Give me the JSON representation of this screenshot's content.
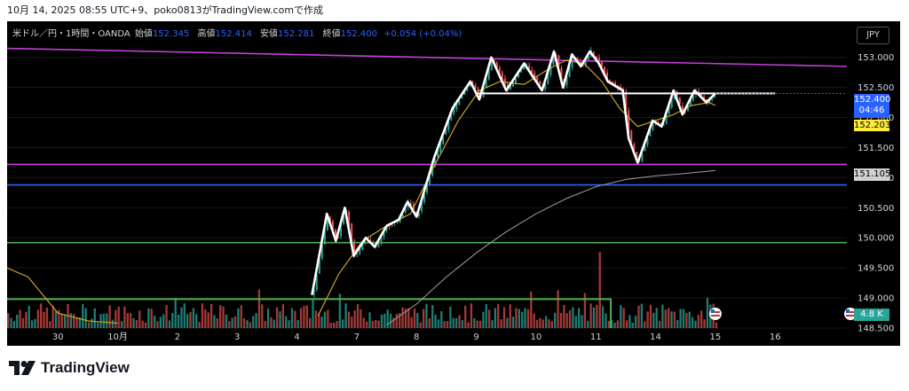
{
  "caption": "10月 14, 2025 08:55 UTC+9、poko0813がTradingView.comで作成",
  "symbol_bar": {
    "symbol": "米ドル／円・1時間・OANDA",
    "open_label": "始値",
    "open": "152.345",
    "high_label": "高値",
    "high": "152.414",
    "low_label": "安値",
    "low": "152.281",
    "close_label": "終値",
    "close": "152.400",
    "change": "+0.054 (+0.04%)"
  },
  "currency_button": "JPY",
  "price_tags": {
    "current": "152.400",
    "countdown": "04:46",
    "ma_short": "152.203",
    "ma_long": "151.105",
    "volume": "4.8 K"
  },
  "brand": {
    "name": "TradingView"
  },
  "colors": {
    "background": "#000000",
    "candle_up": "#26a69a",
    "candle_down": "#ef5350",
    "wave": "#ffffff",
    "trendline": "#c43fd9",
    "support_blue": "#2962ff",
    "support_green": "#4caf50",
    "ma_short": "#c9a227",
    "ma_long": "#a0a0a0",
    "tag_current": "#2962ff",
    "tag_ma_short": "#ffeb3b",
    "tag_ma_long": "#d0d0d0",
    "tag_volume": "#26a69a"
  },
  "chart_data": {
    "type": "line",
    "y_ticks": [
      "153.000",
      "152.500",
      "152.000",
      "151.500",
      "151.000",
      "150.500",
      "150.000",
      "149.500",
      "149.000",
      "148.500"
    ],
    "ylim": [
      148.5,
      153.6
    ],
    "x_ticks": [
      {
        "label": "30",
        "x": 0
      },
      {
        "label": "10月",
        "x": 1
      },
      {
        "label": "2",
        "x": 2
      },
      {
        "label": "3",
        "x": 3
      },
      {
        "label": "4",
        "x": 4
      },
      {
        "label": "7",
        "x": 5
      },
      {
        "label": "8",
        "x": 6
      },
      {
        "label": "9",
        "x": 7
      },
      {
        "label": "10",
        "x": 8
      },
      {
        "label": "11",
        "x": 9
      },
      {
        "label": "14",
        "x": 10
      },
      {
        "label": "15",
        "x": 11
      },
      {
        "label": "16",
        "x": 12
      }
    ],
    "xlim": [
      -0.85,
      13.2
    ],
    "price_path": [
      [
        4.25,
        149.05
      ],
      [
        4.5,
        150.4
      ],
      [
        4.65,
        149.95
      ],
      [
        4.8,
        150.5
      ],
      [
        4.95,
        149.7
      ],
      [
        5.15,
        150.0
      ],
      [
        5.3,
        149.85
      ],
      [
        5.5,
        150.2
      ],
      [
        5.7,
        150.3
      ],
      [
        5.85,
        150.6
      ],
      [
        6.0,
        150.35
      ],
      [
        6.3,
        151.35
      ],
      [
        6.6,
        152.15
      ],
      [
        6.9,
        152.6
      ],
      [
        7.05,
        152.3
      ],
      [
        7.25,
        153.0
      ],
      [
        7.5,
        152.45
      ],
      [
        7.8,
        152.9
      ],
      [
        8.1,
        152.45
      ],
      [
        8.3,
        153.1
      ],
      [
        8.45,
        152.5
      ],
      [
        8.6,
        153.05
      ],
      [
        8.75,
        152.85
      ],
      [
        8.9,
        153.1
      ],
      [
        9.05,
        152.9
      ],
      [
        9.2,
        152.6
      ],
      [
        9.45,
        152.45
      ],
      [
        9.55,
        151.65
      ],
      [
        9.7,
        151.25
      ],
      [
        9.95,
        151.95
      ],
      [
        10.1,
        151.85
      ],
      [
        10.3,
        152.45
      ],
      [
        10.45,
        152.05
      ],
      [
        10.65,
        152.45
      ],
      [
        10.85,
        152.25
      ],
      [
        11.0,
        152.4
      ]
    ],
    "ma_short": [
      [
        4.35,
        148.7
      ],
      [
        4.7,
        149.4
      ],
      [
        5.1,
        149.95
      ],
      [
        5.5,
        150.2
      ],
      [
        5.9,
        150.4
      ],
      [
        6.3,
        151.2
      ],
      [
        6.7,
        151.95
      ],
      [
        7.05,
        152.45
      ],
      [
        7.4,
        152.6
      ],
      [
        7.8,
        152.55
      ],
      [
        8.2,
        152.8
      ],
      [
        8.5,
        152.95
      ],
      [
        8.8,
        152.9
      ],
      [
        9.1,
        152.6
      ],
      [
        9.4,
        152.15
      ],
      [
        9.7,
        151.85
      ],
      [
        10.0,
        151.95
      ],
      [
        10.3,
        152.05
      ],
      [
        10.6,
        152.2
      ],
      [
        10.9,
        152.25
      ],
      [
        11.0,
        152.2
      ]
    ],
    "ma_long": [
      [
        5.5,
        148.55
      ],
      [
        6.0,
        148.9
      ],
      [
        6.5,
        149.35
      ],
      [
        7.0,
        149.75
      ],
      [
        7.5,
        150.1
      ],
      [
        8.0,
        150.4
      ],
      [
        8.5,
        150.65
      ],
      [
        9.0,
        150.85
      ],
      [
        9.5,
        150.97
      ],
      [
        10.0,
        151.03
      ],
      [
        10.5,
        151.07
      ],
      [
        11.0,
        151.12
      ]
    ],
    "resistance": {
      "value": 152.4,
      "x_start": 7.0,
      "x_end": 12.0
    },
    "trendline": [
      [
        -0.85,
        153.15
      ],
      [
        13.2,
        152.85
      ]
    ],
    "support_purple": 151.22,
    "support_blue": 150.88,
    "support_green": 149.92,
    "volume_ceiling": 148.98
  }
}
